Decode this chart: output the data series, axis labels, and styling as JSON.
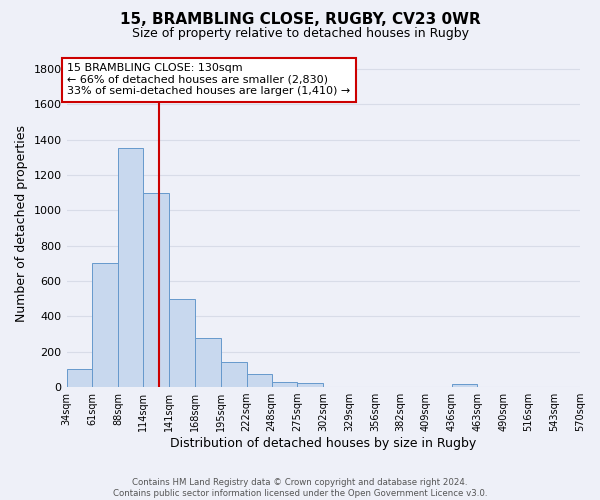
{
  "title1": "15, BRAMBLING CLOSE, RUGBY, CV23 0WR",
  "title2": "Size of property relative to detached houses in Rugby",
  "xlabel": "Distribution of detached houses by size in Rugby",
  "ylabel": "Number of detached properties",
  "bin_edges": [
    34,
    61,
    88,
    114,
    141,
    168,
    195,
    222,
    248,
    275,
    302,
    329,
    356,
    382,
    409,
    436,
    463,
    490,
    516,
    543,
    570
  ],
  "bar_heights": [
    100,
    700,
    1350,
    1100,
    500,
    275,
    140,
    75,
    30,
    25,
    0,
    0,
    0,
    0,
    0,
    20,
    0,
    0,
    0,
    0
  ],
  "bar_fill_color": "#c8d8ee",
  "bar_edge_color": "#6699cc",
  "ylim": [
    0,
    1850
  ],
  "yticks": [
    0,
    200,
    400,
    600,
    800,
    1000,
    1200,
    1400,
    1600,
    1800
  ],
  "property_size": 130,
  "annotation_text": "15 BRAMBLING CLOSE: 130sqm\n← 66% of detached houses are smaller (2,830)\n33% of semi-detached houses are larger (1,410) →",
  "annotation_box_color": "#ffffff",
  "annotation_box_edge_color": "#cc0000",
  "vline_color": "#cc0000",
  "tick_labels": [
    "34sqm",
    "61sqm",
    "88sqm",
    "114sqm",
    "141sqm",
    "168sqm",
    "195sqm",
    "222sqm",
    "248sqm",
    "275sqm",
    "302sqm",
    "329sqm",
    "356sqm",
    "382sqm",
    "409sqm",
    "436sqm",
    "463sqm",
    "490sqm",
    "516sqm",
    "543sqm",
    "570sqm"
  ],
  "footer_text": "Contains HM Land Registry data © Crown copyright and database right 2024.\nContains public sector information licensed under the Open Government Licence v3.0.",
  "bg_color": "#eef0f8",
  "grid_color": "#d8dce8"
}
